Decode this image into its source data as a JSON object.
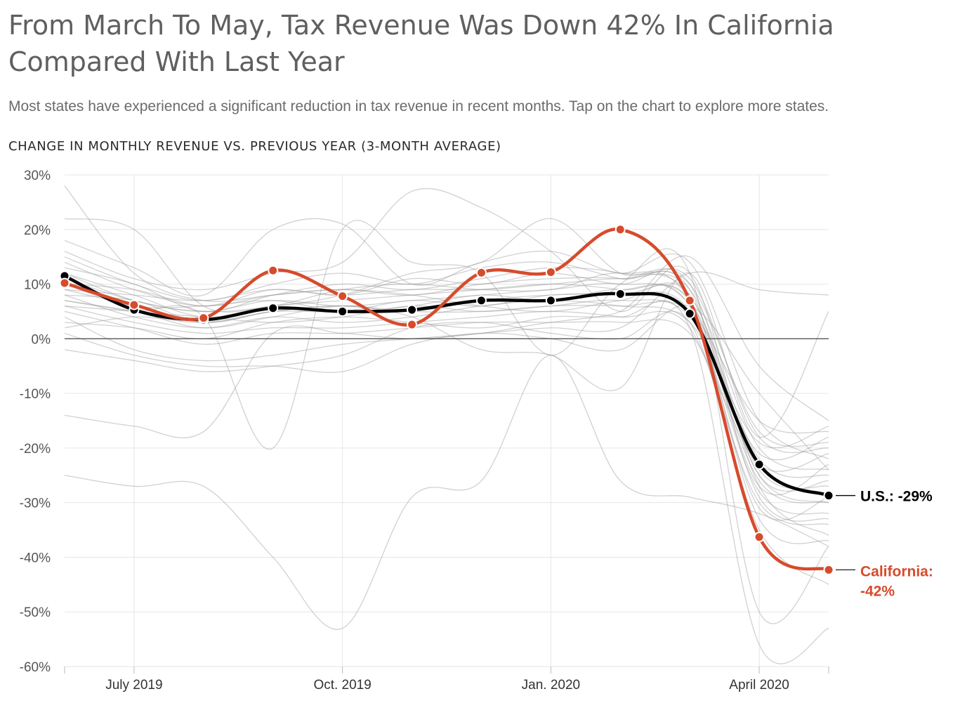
{
  "title": "From March To May, Tax Revenue Was Down 42% In California Compared With Last Year",
  "subtitle": "Most states have experienced a significant reduction in tax revenue in recent months. Tap on the chart to explore more states.",
  "chart_label": "CHANGE IN MONTHLY REVENUE VS. PREVIOUS YEAR (3-MONTH AVERAGE)",
  "chart_data": {
    "type": "line",
    "ylim": [
      -60,
      30
    ],
    "yticks": [
      30,
      20,
      10,
      0,
      -10,
      -20,
      -30,
      -40,
      -50,
      -60
    ],
    "ytick_labels": [
      "30%",
      "20%",
      "10%",
      "0%",
      "-10%",
      "-20%",
      "-30%",
      "-40%",
      "-50%",
      "-60%"
    ],
    "x": [
      "2019-06",
      "2019-07",
      "2019-08",
      "2019-09",
      "2019-10",
      "2019-11",
      "2019-12",
      "2020-01",
      "2020-02",
      "2020-03",
      "2020-04",
      "2020-05"
    ],
    "xtick_labels": [
      {
        "x": "2019-07",
        "label": "July 2019"
      },
      {
        "x": "2019-10",
        "label": "Oct. 2019"
      },
      {
        "x": "2020-01",
        "label": "Jan. 2020"
      },
      {
        "x": "2020-04",
        "label": "April 2020"
      }
    ],
    "grid": true,
    "series": [
      {
        "label": "U.S.",
        "color": "#000000",
        "values": [
          11.5,
          5.3,
          3.5,
          5.6,
          5.0,
          5.3,
          7.0,
          7.0,
          8.2,
          4.6,
          -23.0,
          -28.7
        ]
      },
      {
        "label": "California",
        "color": "#d64b2c",
        "values": [
          10.2,
          6.2,
          3.8,
          12.5,
          7.8,
          2.6,
          12.1,
          12.2,
          20.0,
          7.0,
          -36.3,
          -42.3
        ]
      }
    ],
    "background_series": [
      [
        28,
        12,
        7,
        8,
        9,
        8,
        6,
        5,
        7,
        8,
        -25,
        -30
      ],
      [
        22,
        20,
        6,
        6,
        8,
        12,
        14,
        22,
        12,
        10,
        -25,
        -26
      ],
      [
        18,
        13,
        8,
        20,
        21,
        10,
        14,
        16,
        12,
        14,
        -15,
        -22
      ],
      [
        16,
        11,
        9,
        12,
        14,
        27,
        24,
        16,
        5,
        12,
        -27,
        -36
      ],
      [
        15,
        10,
        7,
        10,
        12,
        10,
        13,
        14,
        11,
        9,
        -29,
        -33
      ],
      [
        14,
        9,
        6,
        9,
        8,
        11,
        10,
        12,
        10,
        11,
        -18,
        -20
      ],
      [
        13,
        10,
        5,
        8,
        10,
        9,
        11,
        13,
        12,
        8,
        -22,
        -25
      ],
      [
        12,
        8,
        4,
        6,
        7,
        8,
        9,
        10,
        9,
        7,
        -24,
        -27
      ],
      [
        11,
        7,
        5,
        7,
        6,
        7,
        8,
        9,
        10,
        6,
        -26,
        -30
      ],
      [
        10,
        9,
        6,
        8,
        9,
        8,
        10,
        11,
        11,
        9,
        -20,
        -24
      ],
      [
        9,
        6,
        3,
        5,
        6,
        5,
        7,
        8,
        8,
        5,
        -28,
        -32
      ],
      [
        8,
        4,
        2,
        4,
        3,
        4,
        6,
        7,
        6,
        3,
        -19,
        -16
      ],
      [
        7,
        5,
        4,
        3,
        4,
        6,
        5,
        6,
        7,
        4,
        -21,
        -18
      ],
      [
        6,
        3,
        1,
        2,
        2,
        3,
        4,
        5,
        4,
        2,
        -30,
        -34
      ],
      [
        5,
        2,
        -1,
        1,
        1,
        2,
        3,
        3,
        3,
        1,
        -23,
        -21
      ],
      [
        4,
        -2,
        -4,
        -3,
        -1,
        0,
        1,
        2,
        2,
        12,
        9,
        8
      ],
      [
        3,
        2,
        0,
        3,
        4,
        3,
        2,
        4,
        5,
        15,
        -5,
        -15
      ],
      [
        2,
        4,
        3,
        5,
        6,
        4,
        -2,
        -3,
        -9,
        12,
        -18,
        5
      ],
      [
        1,
        -3,
        -5,
        -5,
        -6,
        -1,
        1,
        0,
        -2,
        6,
        -10,
        -24
      ],
      [
        -2,
        -4,
        -6,
        -5,
        -3,
        2,
        3,
        1,
        0,
        3,
        -35,
        -45
      ],
      [
        -14,
        -16,
        -17,
        1,
        1,
        0,
        1,
        3,
        4,
        2,
        -56,
        -53
      ],
      [
        -25,
        -27,
        -27,
        -40,
        -53,
        -29,
        -26,
        -3,
        -26,
        -29,
        -32,
        -38
      ],
      [
        6,
        5,
        4,
        -20,
        20,
        14,
        12,
        -3,
        10,
        12,
        -50,
        -38
      ],
      [
        9,
        8,
        7,
        9,
        8,
        9,
        9,
        10,
        11,
        10,
        -17,
        -19
      ],
      [
        12,
        7,
        5,
        6,
        9,
        10,
        9,
        9,
        12,
        7,
        -33,
        -37
      ],
      [
        10,
        6,
        6,
        7,
        5,
        6,
        8,
        7,
        9,
        6,
        -31,
        -29
      ],
      [
        8,
        7,
        3,
        5,
        5,
        7,
        6,
        8,
        8,
        7,
        -27,
        -23
      ],
      [
        7,
        5,
        2,
        4,
        6,
        5,
        5,
        6,
        6,
        5,
        -15,
        -17
      ]
    ]
  },
  "annotations": {
    "us_label": "U.S.: -29%",
    "ca_label_line1": "California:",
    "ca_label_line2": "-42%"
  }
}
